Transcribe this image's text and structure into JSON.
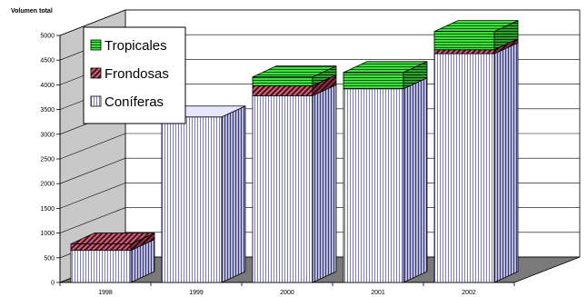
{
  "chart_data": {
    "type": "bar",
    "stacked": true,
    "three_d": true,
    "ylabel": "Volumen total",
    "xlabel": "",
    "title": "",
    "categories": [
      "1998",
      "1999",
      "2000",
      "2001",
      "2002"
    ],
    "series": [
      {
        "name": "Coníferas",
        "values": [
          650,
          3350,
          3780,
          3920,
          4630
        ],
        "color": "#ffffff",
        "stripe_color": "#7b7bd6",
        "pattern": "vertical-stripes"
      },
      {
        "name": "Frondosas",
        "values": [
          130,
          0,
          200,
          0,
          80
        ],
        "color": "#cc6677",
        "stripe_color": "#4a0f1e",
        "pattern": "diagonal-stripes"
      },
      {
        "name": "Tropicales",
        "values": [
          0,
          0,
          180,
          330,
          370
        ],
        "color": "#44dd44",
        "stripe_color": "#006600",
        "pattern": "horizontal-stripes"
      }
    ],
    "y_ticks": [
      "0",
      "500",
      "1000",
      "1500",
      "2000",
      "2500",
      "3000",
      "3500",
      "4000",
      "4500",
      "5000"
    ],
    "ylim": [
      0,
      5000
    ],
    "grid": true,
    "legend_position": "top-left",
    "legend_order": [
      "Tropicales",
      "Frondosas",
      "Coníferas"
    ]
  }
}
